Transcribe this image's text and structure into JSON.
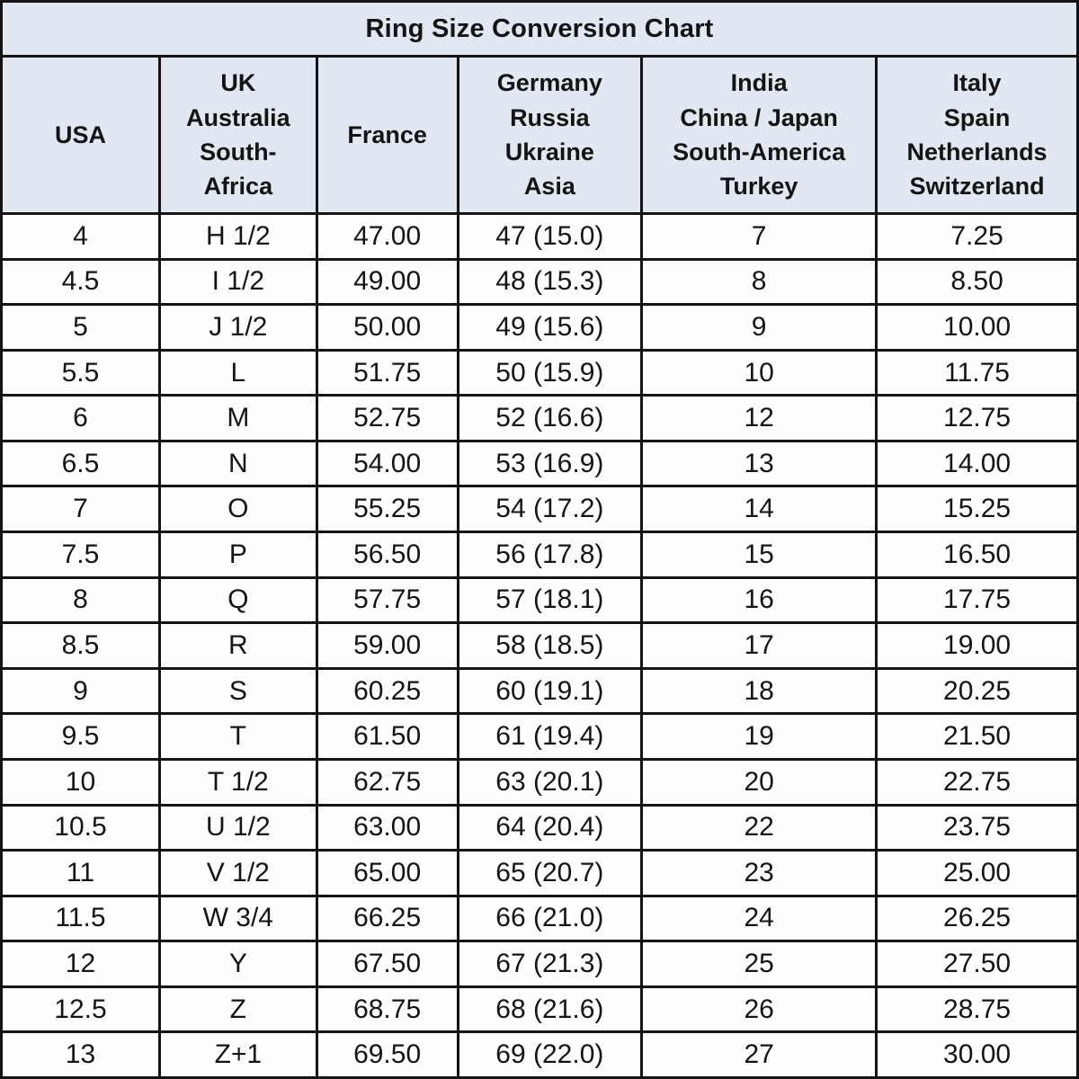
{
  "chart_data": {
    "type": "table",
    "title": "Ring Size Conversion Chart",
    "columns": [
      "USA",
      "UK\nAustralia\nSouth-\nAfrica",
      "France",
      "Germany\nRussia\nUkraine\nAsia",
      "India\nChina / Japan\nSouth-America\nTurkey",
      "Italy\nSpain\nNetherlands\nSwitzerland"
    ],
    "rows": [
      [
        "4",
        "H 1/2",
        "47.00",
        "47 (15.0)",
        "7",
        "7.25"
      ],
      [
        "4.5",
        "I 1/2",
        "49.00",
        "48 (15.3)",
        "8",
        "8.50"
      ],
      [
        "5",
        "J 1/2",
        "50.00",
        "49 (15.6)",
        "9",
        "10.00"
      ],
      [
        "5.5",
        "L",
        "51.75",
        "50 (15.9)",
        "10",
        "11.75"
      ],
      [
        "6",
        "M",
        "52.75",
        "52 (16.6)",
        "12",
        "12.75"
      ],
      [
        "6.5",
        "N",
        "54.00",
        "53 (16.9)",
        "13",
        "14.00"
      ],
      [
        "7",
        "O",
        "55.25",
        "54 (17.2)",
        "14",
        "15.25"
      ],
      [
        "7.5",
        "P",
        "56.50",
        "56 (17.8)",
        "15",
        "16.50"
      ],
      [
        "8",
        "Q",
        "57.75",
        "57 (18.1)",
        "16",
        "17.75"
      ],
      [
        "8.5",
        "R",
        "59.00",
        "58 (18.5)",
        "17",
        "19.00"
      ],
      [
        "9",
        "S",
        "60.25",
        "60 (19.1)",
        "18",
        "20.25"
      ],
      [
        "9.5",
        "T",
        "61.50",
        "61 (19.4)",
        "19",
        "21.50"
      ],
      [
        "10",
        "T 1/2",
        "62.75",
        "63 (20.1)",
        "20",
        "22.75"
      ],
      [
        "10.5",
        "U 1/2",
        "63.00",
        "64 (20.4)",
        "22",
        "23.75"
      ],
      [
        "11",
        "V 1/2",
        "65.00",
        "65 (20.7)",
        "23",
        "25.00"
      ],
      [
        "11.5",
        "W 3/4",
        "66.25",
        "66 (21.0)",
        "24",
        "26.25"
      ],
      [
        "12",
        "Y",
        "67.50",
        "67 (21.3)",
        "25",
        "27.50"
      ],
      [
        "12.5",
        "Z",
        "68.75",
        "68 (21.6)",
        "26",
        "28.75"
      ],
      [
        "13",
        "Z+1",
        "69.50",
        "69 (22.0)",
        "27",
        "30.00"
      ]
    ]
  },
  "colors": {
    "header_background": "#e2e8f1",
    "row_background": "#fefefe",
    "border": "#141414",
    "text": "#141414"
  }
}
